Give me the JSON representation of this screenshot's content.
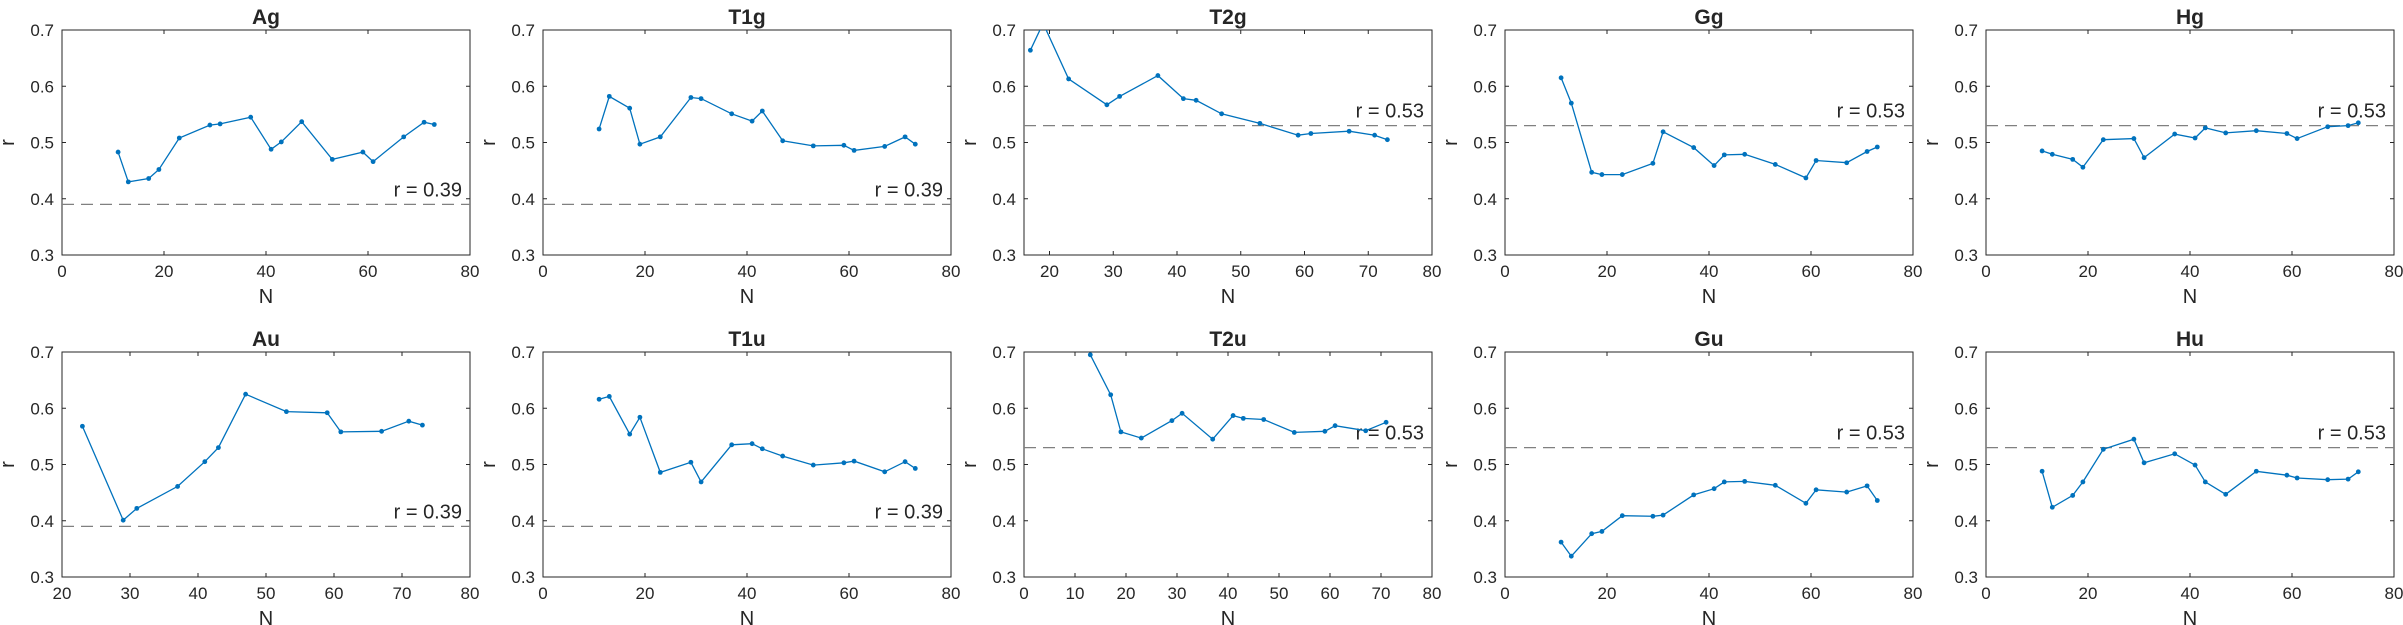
{
  "style": {
    "series_color": "#0072BD",
    "ref_color": "#808080",
    "axis_color": "#262626"
  },
  "chart_data": [
    {
      "type": "line",
      "title": "Ag",
      "xlabel": "N",
      "ylabel": "r",
      "xlim": [
        0,
        80
      ],
      "ylim": [
        0.3,
        0.7
      ],
      "xticks": [
        0,
        20,
        40,
        60,
        80
      ],
      "yticks": [
        0.3,
        0.4,
        0.5,
        0.6,
        0.7
      ],
      "reference": {
        "value": 0.39,
        "label": "r = 0.39"
      },
      "x": [
        11,
        13,
        17,
        19,
        23,
        29,
        31,
        37,
        41,
        43,
        47,
        53,
        59,
        61,
        67,
        71,
        73
      ],
      "y": [
        0.483,
        0.43,
        0.436,
        0.452,
        0.508,
        0.531,
        0.533,
        0.545,
        0.488,
        0.501,
        0.537,
        0.47,
        0.483,
        0.466,
        0.51,
        0.536,
        0.532
      ]
    },
    {
      "type": "line",
      "title": "T1g",
      "xlabel": "N",
      "ylabel": "r",
      "xlim": [
        0,
        80
      ],
      "ylim": [
        0.3,
        0.7
      ],
      "xticks": [
        0,
        20,
        40,
        60,
        80
      ],
      "yticks": [
        0.3,
        0.4,
        0.5,
        0.6,
        0.7
      ],
      "reference": {
        "value": 0.39,
        "label": "r = 0.39"
      },
      "x": [
        11,
        13,
        17,
        19,
        23,
        29,
        31,
        37,
        41,
        43,
        47,
        53,
        59,
        61,
        67,
        71,
        73
      ],
      "y": [
        0.524,
        0.582,
        0.561,
        0.497,
        0.51,
        0.58,
        0.578,
        0.551,
        0.538,
        0.556,
        0.503,
        0.494,
        0.495,
        0.486,
        0.493,
        0.51,
        0.497
      ]
    },
    {
      "type": "line",
      "title": "T2g",
      "xlabel": "N",
      "ylabel": "r",
      "xlim": [
        16,
        80
      ],
      "ylim": [
        0.3,
        0.7
      ],
      "xticks": [
        20,
        30,
        40,
        50,
        60,
        70,
        80
      ],
      "yticks": [
        0.3,
        0.4,
        0.5,
        0.6,
        0.7
      ],
      "reference": {
        "value": 0.53,
        "label": "r = 0.53"
      },
      "x": [
        17,
        19,
        23,
        29,
        31,
        37,
        41,
        43,
        47,
        53,
        59,
        61,
        67,
        71,
        73
      ],
      "y": [
        0.664,
        0.712,
        0.613,
        0.567,
        0.582,
        0.619,
        0.578,
        0.575,
        0.551,
        0.534,
        0.513,
        0.516,
        0.52,
        0.513,
        0.505
      ]
    },
    {
      "type": "line",
      "title": "Gg",
      "xlabel": "N",
      "ylabel": "r",
      "xlim": [
        0,
        80
      ],
      "ylim": [
        0.3,
        0.7
      ],
      "xticks": [
        0,
        20,
        40,
        60,
        80
      ],
      "yticks": [
        0.3,
        0.4,
        0.5,
        0.6,
        0.7
      ],
      "reference": {
        "value": 0.53,
        "label": "r = 0.53"
      },
      "x": [
        11,
        13,
        17,
        19,
        23,
        29,
        31,
        37,
        41,
        43,
        47,
        53,
        59,
        61,
        67,
        71,
        73
      ],
      "y": [
        0.615,
        0.57,
        0.447,
        0.443,
        0.443,
        0.463,
        0.519,
        0.491,
        0.459,
        0.478,
        0.479,
        0.461,
        0.437,
        0.468,
        0.464,
        0.484,
        0.492
      ]
    },
    {
      "type": "line",
      "title": "Hg",
      "xlabel": "N",
      "ylabel": "r",
      "xlim": [
        0,
        80
      ],
      "ylim": [
        0.3,
        0.7
      ],
      "xticks": [
        0,
        20,
        40,
        60,
        80
      ],
      "yticks": [
        0.3,
        0.4,
        0.5,
        0.6,
        0.7
      ],
      "reference": {
        "value": 0.53,
        "label": "r = 0.53"
      },
      "x": [
        11,
        13,
        17,
        19,
        23,
        29,
        31,
        37,
        41,
        43,
        47,
        53,
        59,
        61,
        67,
        71,
        73
      ],
      "y": [
        0.485,
        0.479,
        0.47,
        0.456,
        0.505,
        0.507,
        0.473,
        0.515,
        0.508,
        0.526,
        0.517,
        0.521,
        0.516,
        0.507,
        0.528,
        0.53,
        0.535
      ]
    },
    {
      "type": "line",
      "title": "Au",
      "xlabel": "N",
      "ylabel": "r",
      "xlim": [
        20,
        80
      ],
      "ylim": [
        0.3,
        0.7
      ],
      "xticks": [
        20,
        30,
        40,
        50,
        60,
        70,
        80
      ],
      "yticks": [
        0.3,
        0.4,
        0.5,
        0.6,
        0.7
      ],
      "reference": {
        "value": 0.39,
        "label": "r = 0.39"
      },
      "x": [
        23,
        29,
        31,
        37,
        41,
        43,
        47,
        53,
        59,
        61,
        67,
        71,
        73
      ],
      "y": [
        0.568,
        0.401,
        0.422,
        0.461,
        0.505,
        0.53,
        0.625,
        0.594,
        0.592,
        0.558,
        0.559,
        0.577,
        0.57
      ]
    },
    {
      "type": "line",
      "title": "T1u",
      "xlabel": "N",
      "ylabel": "r",
      "xlim": [
        0,
        80
      ],
      "ylim": [
        0.3,
        0.7
      ],
      "xticks": [
        0,
        20,
        40,
        60,
        80
      ],
      "yticks": [
        0.3,
        0.4,
        0.5,
        0.6,
        0.7
      ],
      "reference": {
        "value": 0.39,
        "label": "r = 0.39"
      },
      "x": [
        11,
        13,
        17,
        19,
        23,
        29,
        31,
        37,
        41,
        43,
        47,
        53,
        59,
        61,
        67,
        71,
        73
      ],
      "y": [
        0.616,
        0.621,
        0.554,
        0.584,
        0.486,
        0.504,
        0.469,
        0.535,
        0.537,
        0.528,
        0.515,
        0.499,
        0.503,
        0.506,
        0.487,
        0.505,
        0.493
      ]
    },
    {
      "type": "line",
      "title": "T2u",
      "xlabel": "N",
      "ylabel": "r",
      "xlim": [
        0,
        80
      ],
      "ylim": [
        0.3,
        0.7
      ],
      "xticks": [
        0,
        10,
        20,
        30,
        40,
        50,
        60,
        70,
        80
      ],
      "yticks": [
        0.3,
        0.4,
        0.5,
        0.6,
        0.7
      ],
      "reference": {
        "value": 0.53,
        "label": "r = 0.53"
      },
      "x": [
        13,
        17,
        19,
        23,
        29,
        31,
        37,
        41,
        43,
        47,
        53,
        59,
        61,
        67,
        71
      ],
      "y": [
        0.695,
        0.624,
        0.558,
        0.547,
        0.578,
        0.591,
        0.545,
        0.587,
        0.582,
        0.58,
        0.557,
        0.559,
        0.569,
        0.56,
        0.575
      ]
    },
    {
      "type": "line",
      "title": "Gu",
      "xlabel": "N",
      "ylabel": "r",
      "xlim": [
        0,
        80
      ],
      "ylim": [
        0.3,
        0.7
      ],
      "xticks": [
        0,
        20,
        40,
        60,
        80
      ],
      "yticks": [
        0.3,
        0.4,
        0.5,
        0.6,
        0.7
      ],
      "reference": {
        "value": 0.53,
        "label": "r = 0.53"
      },
      "x": [
        11,
        13,
        17,
        19,
        23,
        29,
        31,
        37,
        41,
        43,
        47,
        53,
        59,
        61,
        67,
        71,
        73
      ],
      "y": [
        0.362,
        0.337,
        0.377,
        0.381,
        0.409,
        0.408,
        0.41,
        0.446,
        0.457,
        0.469,
        0.47,
        0.463,
        0.431,
        0.455,
        0.451,
        0.462,
        0.436
      ]
    },
    {
      "type": "line",
      "title": "Hu",
      "xlabel": "N",
      "ylabel": "r",
      "xlim": [
        0,
        80
      ],
      "ylim": [
        0.3,
        0.7
      ],
      "xticks": [
        0,
        20,
        40,
        60,
        80
      ],
      "yticks": [
        0.3,
        0.4,
        0.5,
        0.6,
        0.7
      ],
      "reference": {
        "value": 0.53,
        "label": "r = 0.53"
      },
      "x": [
        11,
        13,
        17,
        19,
        23,
        29,
        31,
        37,
        41,
        43,
        47,
        53,
        59,
        61,
        67,
        71,
        73
      ],
      "y": [
        0.488,
        0.424,
        0.445,
        0.469,
        0.527,
        0.545,
        0.503,
        0.519,
        0.499,
        0.469,
        0.447,
        0.488,
        0.481,
        0.476,
        0.473,
        0.474,
        0.487
      ]
    }
  ]
}
